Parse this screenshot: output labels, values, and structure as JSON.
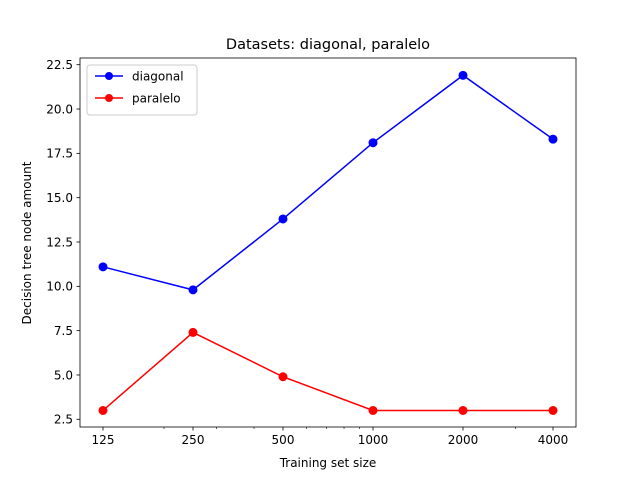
{
  "chart_data": {
    "type": "line",
    "title": "Datasets: diagonal, paralelo",
    "xlabel": "Training set size",
    "ylabel": "Decision tree node amount",
    "x_scale": "log2",
    "x": [
      125,
      250,
      500,
      1000,
      2000,
      4000
    ],
    "x_tick_labels": [
      "125",
      "250",
      "500",
      "1000",
      "2000",
      "4000"
    ],
    "ylim": [
      2.5,
      22.5
    ],
    "y_ticks": [
      2.5,
      5.0,
      7.5,
      10.0,
      12.5,
      15.0,
      17.5,
      20.0,
      22.5
    ],
    "y_tick_labels": [
      "2.5",
      "5.0",
      "7.5",
      "10.0",
      "12.5",
      "15.0",
      "17.5",
      "20.0",
      "22.5"
    ],
    "grid": false,
    "legend_position": "top-left",
    "series": [
      {
        "name": "diagonal",
        "color": "#0000ff",
        "marker": "circle",
        "values": [
          11.1,
          9.8,
          13.8,
          18.1,
          21.9,
          18.3
        ]
      },
      {
        "name": "paralelo",
        "color": "#ff0000",
        "marker": "circle",
        "values": [
          3.0,
          7.4,
          4.9,
          3.0,
          3.0,
          3.0
        ]
      }
    ]
  }
}
